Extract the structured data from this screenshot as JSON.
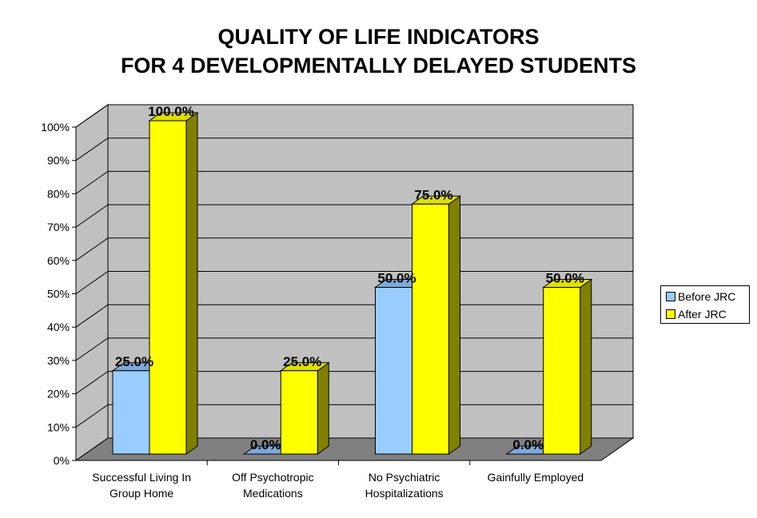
{
  "chart_data": {
    "type": "bar",
    "title": [
      "QUALITY OF LIFE INDICATORS",
      "FOR 4 DEVELOPMENTALLY DELAYED STUDENTS"
    ],
    "categories": [
      [
        "Successful Living In",
        "Group Home"
      ],
      [
        "Off Psychotropic",
        "Medications"
      ],
      [
        "No Psychiatric",
        "Hospitalizations"
      ],
      [
        "Gainfully Employed"
      ]
    ],
    "series": [
      {
        "name": "Before JRC",
        "color": "#99ccff",
        "values": [
          25,
          0,
          50,
          0
        ],
        "labels": [
          "25.0%",
          "0.0%",
          "50.0%",
          "0.0%"
        ]
      },
      {
        "name": "After JRC",
        "color": "#ffff00",
        "values": [
          100,
          25,
          75,
          50
        ],
        "labels": [
          "100.0%",
          "25.0%",
          "75.0%",
          "50.0%"
        ]
      }
    ],
    "y_ticks": [
      "0%",
      "10%",
      "20%",
      "30%",
      "40%",
      "50%",
      "60%",
      "70%",
      "80%",
      "90%",
      "100%"
    ],
    "ylim": [
      0,
      100
    ],
    "grid": true,
    "legend_position": "right",
    "colors": {
      "wall": "#c0c0c0",
      "floor": "#808080",
      "side_wall": "#c0c0c0"
    }
  }
}
